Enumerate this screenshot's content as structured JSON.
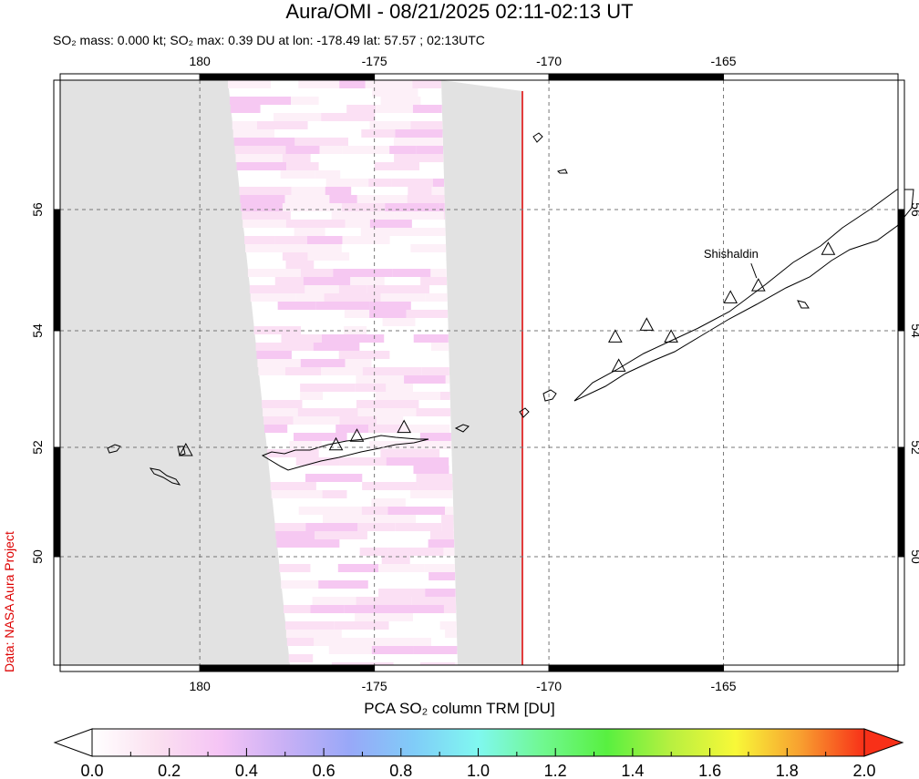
{
  "title": "Aura/OMI - 08/21/2025 02:11-02:13 UT",
  "subtitle": "SO₂ mass: 0.000 kt; SO₂ max: 0.39 DU at lon: -178.49 lat: 57.57 ; 02:13UTC",
  "credit": "Data: NASA Aura Project",
  "chart_data": {
    "type": "map",
    "lon_range": [
      -184,
      -160
    ],
    "lat_range": [
      48,
      58
    ],
    "lon_ticks": [
      {
        "v": -180,
        "label": "180"
      },
      {
        "v": -175,
        "label": "-175"
      },
      {
        "v": -170,
        "label": "-170"
      },
      {
        "v": -165,
        "label": "-165"
      }
    ],
    "lat_ticks": [
      {
        "v": 56,
        "label": "56"
      },
      {
        "v": 54,
        "label": "54"
      },
      {
        "v": 52,
        "label": "52"
      },
      {
        "v": 50,
        "label": "50"
      }
    ],
    "volcano_label": "Shishaldin",
    "volcanoes": [
      [
        -164.0,
        54.75
      ],
      [
        -164.8,
        54.55
      ],
      [
        -162.0,
        55.35
      ],
      [
        -166.5,
        53.9
      ],
      [
        -168.0,
        53.4
      ],
      [
        -168.1,
        53.9
      ],
      [
        -167.2,
        54.1
      ],
      [
        -174.15,
        52.35
      ],
      [
        -176.1,
        52.05
      ],
      [
        -175.5,
        52.2
      ],
      [
        -180.4,
        51.95
      ]
    ],
    "colorbar": {
      "title": "PCA SO₂ column TRM [DU]",
      "min": 0,
      "max": 2,
      "ticks": [
        "0.0",
        "0.2",
        "0.4",
        "0.6",
        "0.8",
        "1.0",
        "1.2",
        "1.4",
        "1.6",
        "1.8",
        "2.0"
      ],
      "colors": [
        "#ffffff",
        "#fbe0f0",
        "#f5c4f5",
        "#c8b0f5",
        "#98a8f8",
        "#80ccf8",
        "#80f8f0",
        "#70f890",
        "#58f040",
        "#b8f040",
        "#f8f838",
        "#f8a030",
        "#f83018"
      ]
    }
  }
}
